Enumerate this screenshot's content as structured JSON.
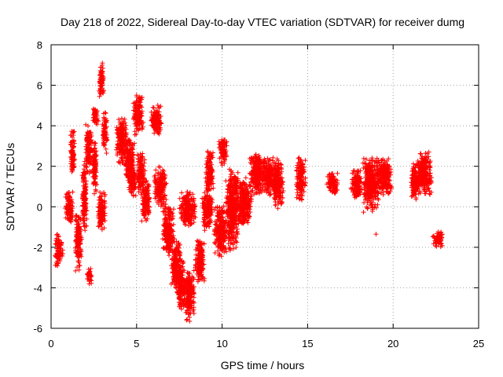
{
  "chart_data": {
    "type": "scatter",
    "title": "Day 218 of 2022, Sidereal Day-to-day VTEC variation (SDTVAR) for receiver dumg",
    "xlabel": "GPS time / hours",
    "ylabel": "SDTVAR / TECUs",
    "xlim": [
      0,
      25
    ],
    "ylim": [
      -6,
      8
    ],
    "xticks": [
      "0",
      "5",
      "10",
      "15",
      "20",
      "25"
    ],
    "yticks": [
      "-6",
      "-4",
      "-2",
      "0",
      "2",
      "4",
      "6",
      "8"
    ],
    "grid": true,
    "marker": "plus",
    "color": "#ff0000",
    "clusters": [
      {
        "x": [
          0.2,
          0.7
        ],
        "y": [
          -3.0,
          -1.3
        ]
      },
      {
        "x": [
          0.8,
          1.3
        ],
        "y": [
          -1.0,
          0.8
        ]
      },
      {
        "x": [
          1.1,
          1.4
        ],
        "y": [
          1.5,
          3.9
        ]
      },
      {
        "x": [
          1.4,
          1.8
        ],
        "y": [
          -3.2,
          -0.2
        ]
      },
      {
        "x": [
          1.8,
          2.1
        ],
        "y": [
          -1.5,
          2.5
        ]
      },
      {
        "x": [
          2.0,
          2.4
        ],
        "y": [
          1.5,
          4.2
        ]
      },
      {
        "x": [
          2.1,
          2.4
        ],
        "y": [
          -3.9,
          -3.0
        ]
      },
      {
        "x": [
          2.4,
          2.7
        ],
        "y": [
          0.5,
          3.5
        ]
      },
      {
        "x": [
          2.4,
          2.8
        ],
        "y": [
          4.0,
          5.0
        ]
      },
      {
        "x": [
          2.8,
          3.1
        ],
        "y": [
          5.2,
          7.1
        ]
      },
      {
        "x": [
          2.7,
          3.2
        ],
        "y": [
          -1.3,
          0.8
        ]
      },
      {
        "x": [
          3.0,
          3.3
        ],
        "y": [
          2.5,
          4.8
        ]
      },
      {
        "x": [
          3.8,
          4.5
        ],
        "y": [
          2.0,
          4.5
        ]
      },
      {
        "x": [
          4.3,
          4.9
        ],
        "y": [
          1.0,
          3.5
        ]
      },
      {
        "x": [
          4.5,
          5.0
        ],
        "y": [
          0.5,
          2.0
        ]
      },
      {
        "x": [
          4.8,
          5.4
        ],
        "y": [
          3.5,
          5.6
        ]
      },
      {
        "x": [
          5.0,
          5.5
        ],
        "y": [
          0.5,
          2.8
        ]
      },
      {
        "x": [
          5.3,
          5.8
        ],
        "y": [
          -0.8,
          1.5
        ]
      },
      {
        "x": [
          5.8,
          6.5
        ],
        "y": [
          3.5,
          5.1
        ]
      },
      {
        "x": [
          6.0,
          6.8
        ],
        "y": [
          0.0,
          2.0
        ]
      },
      {
        "x": [
          6.5,
          7.2
        ],
        "y": [
          -2.5,
          0.3
        ]
      },
      {
        "x": [
          7.0,
          7.6
        ],
        "y": [
          -4.0,
          -1.5
        ]
      },
      {
        "x": [
          7.3,
          7.9
        ],
        "y": [
          -5.2,
          -2.5
        ]
      },
      {
        "x": [
          7.8,
          8.4
        ],
        "y": [
          -5.7,
          -3.0
        ]
      },
      {
        "x": [
          7.5,
          8.5
        ],
        "y": [
          -1.0,
          0.8
        ]
      },
      {
        "x": [
          8.4,
          9.0
        ],
        "y": [
          -3.8,
          -1.5
        ]
      },
      {
        "x": [
          8.8,
          9.5
        ],
        "y": [
          -1.2,
          1.0
        ]
      },
      {
        "x": [
          9.0,
          9.5
        ],
        "y": [
          0.5,
          2.9
        ]
      },
      {
        "x": [
          9.5,
          10.3
        ],
        "y": [
          -2.5,
          0.2
        ]
      },
      {
        "x": [
          9.8,
          10.3
        ],
        "y": [
          2.0,
          3.6
        ]
      },
      {
        "x": [
          10.2,
          11.0
        ],
        "y": [
          -2.2,
          2.0
        ]
      },
      {
        "x": [
          10.8,
          11.8
        ],
        "y": [
          -1.0,
          1.5
        ]
      },
      {
        "x": [
          11.6,
          12.5
        ],
        "y": [
          0.5,
          2.8
        ]
      },
      {
        "x": [
          12.3,
          13.3
        ],
        "y": [
          0.5,
          2.5
        ]
      },
      {
        "x": [
          13.0,
          13.6
        ],
        "y": [
          -0.2,
          2.4
        ]
      },
      {
        "x": [
          14.3,
          14.9
        ],
        "y": [
          0.3,
          2.5
        ]
      },
      {
        "x": [
          16.1,
          16.8
        ],
        "y": [
          0.5,
          1.7
        ]
      },
      {
        "x": [
          17.5,
          18.2
        ],
        "y": [
          0.3,
          1.9
        ]
      },
      {
        "x": [
          18.2,
          19.2
        ],
        "y": [
          -0.3,
          2.6
        ]
      },
      {
        "x": [
          19.0,
          20.0
        ],
        "y": [
          0.5,
          2.5
        ]
      },
      {
        "x": [
          21.0,
          21.6
        ],
        "y": [
          0.2,
          2.2
        ]
      },
      {
        "x": [
          21.4,
          22.3
        ],
        "y": [
          0.5,
          2.8
        ]
      },
      {
        "x": [
          22.3,
          23.0
        ],
        "y": [
          -2.0,
          -1.2
        ]
      }
    ],
    "outliers": [
      {
        "x": 19.0,
        "y": -1.35
      },
      {
        "x": 5.3,
        "y": -0.7
      },
      {
        "x": 3.0,
        "y": 7.1
      },
      {
        "x": 8.1,
        "y": -5.65
      }
    ]
  }
}
